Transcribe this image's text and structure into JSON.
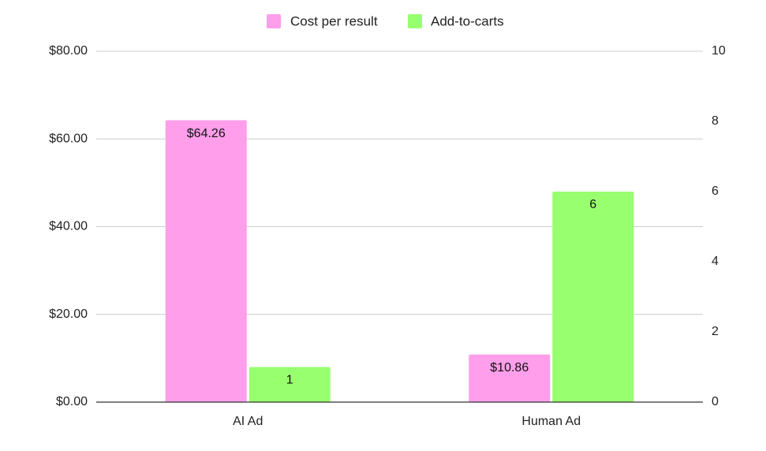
{
  "chart_data": {
    "type": "bar",
    "categories": [
      "AI Ad",
      "Human Ad"
    ],
    "series": [
      {
        "name": "Cost per result",
        "axis": "left",
        "color": "#ff9eea",
        "values": [
          64.26,
          10.86
        ],
        "labels": [
          "$64.26",
          "$10.86"
        ]
      },
      {
        "name": "Add-to-carts",
        "axis": "right",
        "color": "#98ff6f",
        "values": [
          1,
          6
        ],
        "labels": [
          "1",
          "6"
        ]
      }
    ],
    "y_left": {
      "min": 0,
      "max": 80,
      "ticks": [
        0,
        20,
        40,
        60,
        80
      ],
      "tick_labels": [
        "$0.00",
        "$20.00",
        "$40.00",
        "$60.00",
        "$80.00"
      ]
    },
    "y_right": {
      "min": 0,
      "max": 10,
      "ticks": [
        0,
        2,
        4,
        6,
        8,
        10
      ],
      "tick_labels": [
        "0",
        "2",
        "4",
        "6",
        "8",
        "10"
      ]
    },
    "grid": true,
    "legend_position": "top-center",
    "axis_color": "#333333",
    "grid_color": "#cccccc"
  }
}
